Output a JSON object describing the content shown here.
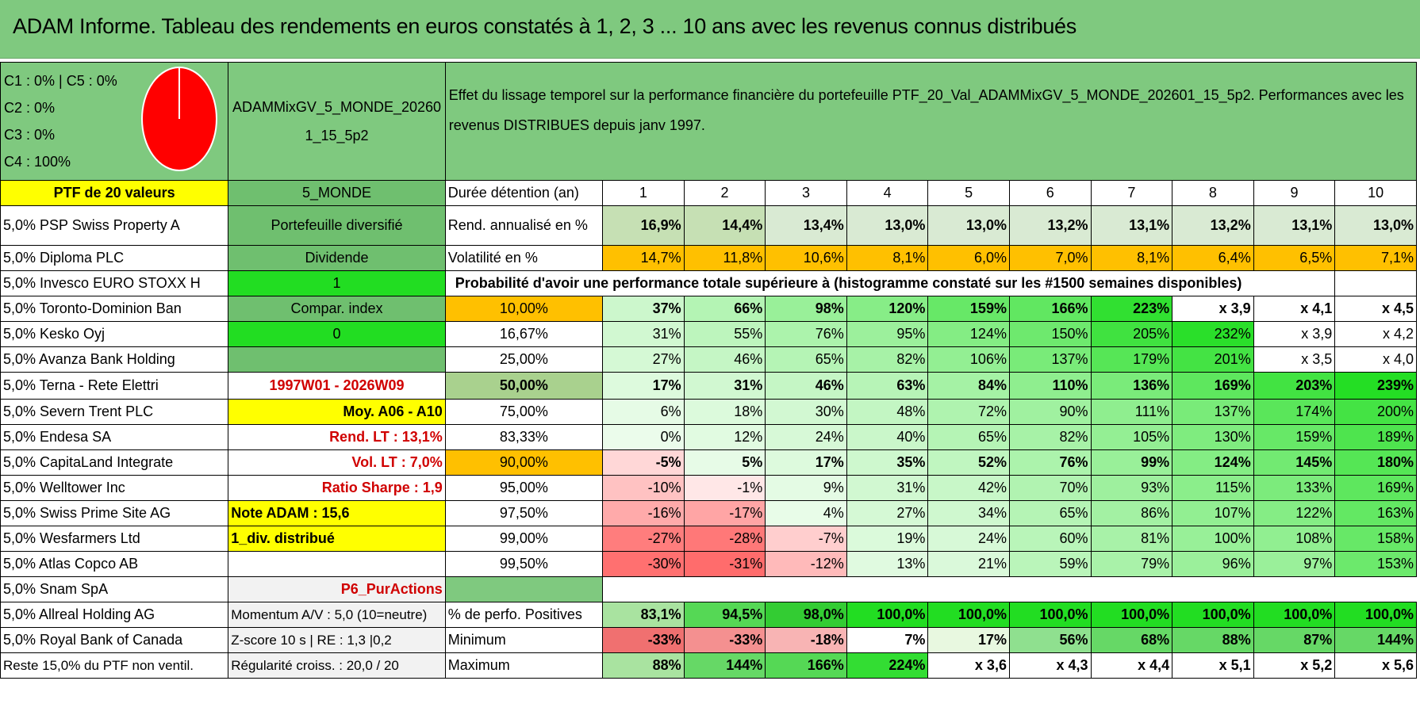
{
  "title": "ADAM Informe. Tableau des rendements en euros constatés à 1, 2, 3 ... 10 ans avec les revenus connus distribués",
  "categories_legend": [
    "C1 : 0% | C5 : 0%",
    "C2 : 0%",
    "C3 : 0%",
    "C4 : 100%"
  ],
  "pie": {
    "color": "#ff0000",
    "c4_share": 100
  },
  "portfolio_code": "ADAMMixGV_5_MONDE_202601_15_5p2",
  "description": "Effet du lissage temporel sur la performance financière du portefeuille PTF_20_Val_ADAMMixGV_5_MONDE_202601_15_5p2. Performances avec les revenus DISTRIBUES depuis janv 1997.",
  "header_row": {
    "ptf": "PTF de 20 valeurs",
    "zone": "5_MONDE",
    "duration_label": "Durée détention (an)",
    "years": [
      "1",
      "2",
      "3",
      "4",
      "5",
      "6",
      "7",
      "8",
      "9",
      "10"
    ]
  },
  "holdings": [
    "5,0% PSP Swiss Property A",
    "5,0% Diploma PLC",
    "5,0% Invesco EURO STOXX H",
    "5,0% Toronto-Dominion Ban",
    "5,0% Kesko Oyj",
    "5,0% Avanza Bank Holding",
    "5,0% Terna - Rete Elettri",
    "5,0% Severn Trent PLC",
    "5,0% Endesa SA",
    "5,0% CapitaLand Integrate",
    "5,0% Welltower Inc",
    "5,0% Swiss Prime Site AG",
    "5,0% Wesfarmers Ltd",
    "5,0% Atlas Copco AB",
    "5,0% Snam SpA",
    "5,0% Allreal Holding AG",
    "5,0% Royal Bank of Canada",
    "Reste 15,0% du PTF non ventil."
  ],
  "side_info": {
    "type": "Portefeuille diversifié",
    "style": "Dividende",
    "val1": "1",
    "compar": "Compar. index",
    "val0": "0",
    "period": "1997W01 - 2026W09",
    "moy": "Moy. A06 - A10",
    "rend_lt": "Rend. LT : 13,1%",
    "vol_lt": "Vol. LT : 7,0%",
    "sharpe": "Ratio Sharpe : 1,9",
    "note": "Note ADAM : 15,6",
    "div": "1_div. distribué",
    "p6": "P6_PurActions",
    "momentum": "Momentum A/V : 5,0 (10=neutre)",
    "zscore": "Z-score 10 s | RE : 1,3 |0,2",
    "regularite": "Régularité croiss. : 20,0 / 20"
  },
  "rend": {
    "label": "Rend. annualisé en %",
    "values": [
      "16,9%",
      "14,4%",
      "13,4%",
      "13,0%",
      "13,0%",
      "13,2%",
      "13,1%",
      "13,2%",
      "13,1%",
      "13,0%"
    ]
  },
  "vol": {
    "label": "Volatilité en %",
    "values": [
      "14,7%",
      "11,8%",
      "10,6%",
      "8,1%",
      "6,0%",
      "7,0%",
      "8,1%",
      "6,4%",
      "6,5%",
      "7,1%"
    ]
  },
  "prob_header": "Probabilité d'avoir une performance totale supérieure à (histogramme constaté sur les #1500 semaines disponibles)",
  "prob_rows": [
    {
      "p": "10,00%",
      "v": [
        "37%",
        "66%",
        "98%",
        "120%",
        "159%",
        "166%",
        "223%",
        "x 3,9",
        "x 4,1",
        "x 4,5"
      ]
    },
    {
      "p": "16,67%",
      "v": [
        "31%",
        "55%",
        "76%",
        "95%",
        "124%",
        "150%",
        "205%",
        "232%",
        "x 3,9",
        "x 4,2"
      ]
    },
    {
      "p": "25,00%",
      "v": [
        "27%",
        "46%",
        "65%",
        "82%",
        "106%",
        "137%",
        "179%",
        "201%",
        "x 3,5",
        "x 4,0"
      ]
    },
    {
      "p": "50,00%",
      "v": [
        "17%",
        "31%",
        "46%",
        "63%",
        "84%",
        "110%",
        "136%",
        "169%",
        "203%",
        "239%"
      ]
    },
    {
      "p": "75,00%",
      "v": [
        "6%",
        "18%",
        "30%",
        "48%",
        "72%",
        "90%",
        "111%",
        "137%",
        "174%",
        "200%"
      ]
    },
    {
      "p": "83,33%",
      "v": [
        "0%",
        "12%",
        "24%",
        "40%",
        "65%",
        "82%",
        "105%",
        "130%",
        "159%",
        "189%"
      ]
    },
    {
      "p": "90,00%",
      "v": [
        "-5%",
        "5%",
        "17%",
        "35%",
        "52%",
        "76%",
        "99%",
        "124%",
        "145%",
        "180%"
      ]
    },
    {
      "p": "95,00%",
      "v": [
        "-10%",
        "-1%",
        "9%",
        "31%",
        "42%",
        "70%",
        "93%",
        "115%",
        "133%",
        "169%"
      ]
    },
    {
      "p": "97,50%",
      "v": [
        "-16%",
        "-17%",
        "4%",
        "27%",
        "34%",
        "65%",
        "86%",
        "107%",
        "122%",
        "163%"
      ]
    },
    {
      "p": "99,00%",
      "v": [
        "-27%",
        "-28%",
        "-7%",
        "19%",
        "24%",
        "60%",
        "81%",
        "100%",
        "108%",
        "158%"
      ]
    },
    {
      "p": "99,50%",
      "v": [
        "-30%",
        "-31%",
        "-12%",
        "13%",
        "21%",
        "59%",
        "79%",
        "96%",
        "97%",
        "153%"
      ]
    }
  ],
  "positives": {
    "label": "% de perfo. Positives",
    "values": [
      "83,1%",
      "94,5%",
      "98,0%",
      "100,0%",
      "100,0%",
      "100,0%",
      "100,0%",
      "100,0%",
      "100,0%",
      "100,0%"
    ]
  },
  "minimum": {
    "label": "Minimum",
    "values": [
      "-33%",
      "-33%",
      "-18%",
      "7%",
      "17%",
      "56%",
      "68%",
      "88%",
      "87%",
      "144%"
    ]
  },
  "maximum": {
    "label": "Maximum",
    "values": [
      "88%",
      "144%",
      "166%",
      "224%",
      "x 3,6",
      "x 4,3",
      "x 4,4",
      "x 5,1",
      "x 5,2",
      "x 5,6"
    ]
  }
}
